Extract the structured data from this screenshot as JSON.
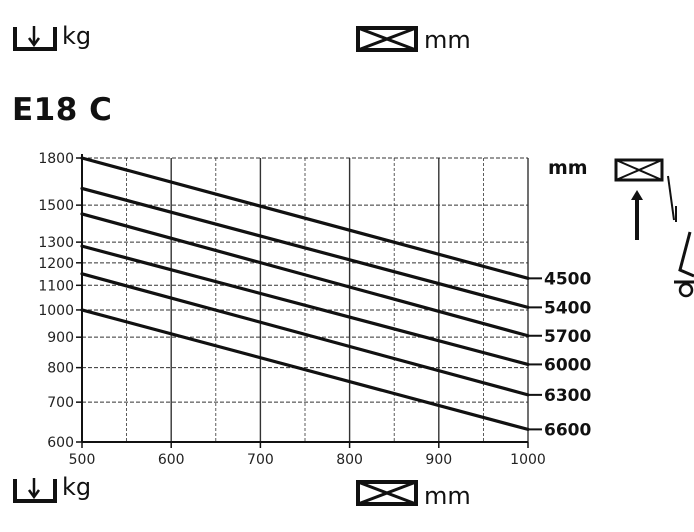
{
  "units": {
    "load_unit": "kg",
    "dimension_unit": "mm"
  },
  "model": "E18 C",
  "right_unit": "mm",
  "chart_data": {
    "type": "line",
    "title": "E18 C",
    "xlabel": "",
    "ylabel": "",
    "xlim": [
      500,
      1000
    ],
    "ylim": [
      600,
      1800
    ],
    "y_scale": "log",
    "x_ticks": [
      500,
      600,
      700,
      800,
      900,
      1000
    ],
    "x_tick_labels": [
      "500",
      "600",
      "700",
      "800",
      "900",
      "1000"
    ],
    "y_ticks": [
      600,
      700,
      800,
      900,
      1000,
      1100,
      1200,
      1300,
      1500,
      1800
    ],
    "y_tick_labels": [
      "600",
      "700",
      "800",
      "900",
      "1000",
      "1100",
      "1200",
      "1300",
      "1500",
      "1800"
    ],
    "grid": true,
    "series": [
      {
        "name": "4500",
        "x": [
          500,
          1000
        ],
        "y": [
          1800,
          1130
        ]
      },
      {
        "name": "5400",
        "x": [
          500,
          1000
        ],
        "y": [
          1600,
          1010
        ]
      },
      {
        "name": "5700",
        "x": [
          500,
          1000
        ],
        "y": [
          1450,
          905
        ]
      },
      {
        "name": "6000",
        "x": [
          500,
          1000
        ],
        "y": [
          1280,
          810
        ]
      },
      {
        "name": "6300",
        "x": [
          500,
          1000
        ],
        "y": [
          1150,
          720
        ]
      },
      {
        "name": "6600",
        "x": [
          500,
          1000
        ],
        "y": [
          1000,
          630
        ]
      }
    ]
  }
}
